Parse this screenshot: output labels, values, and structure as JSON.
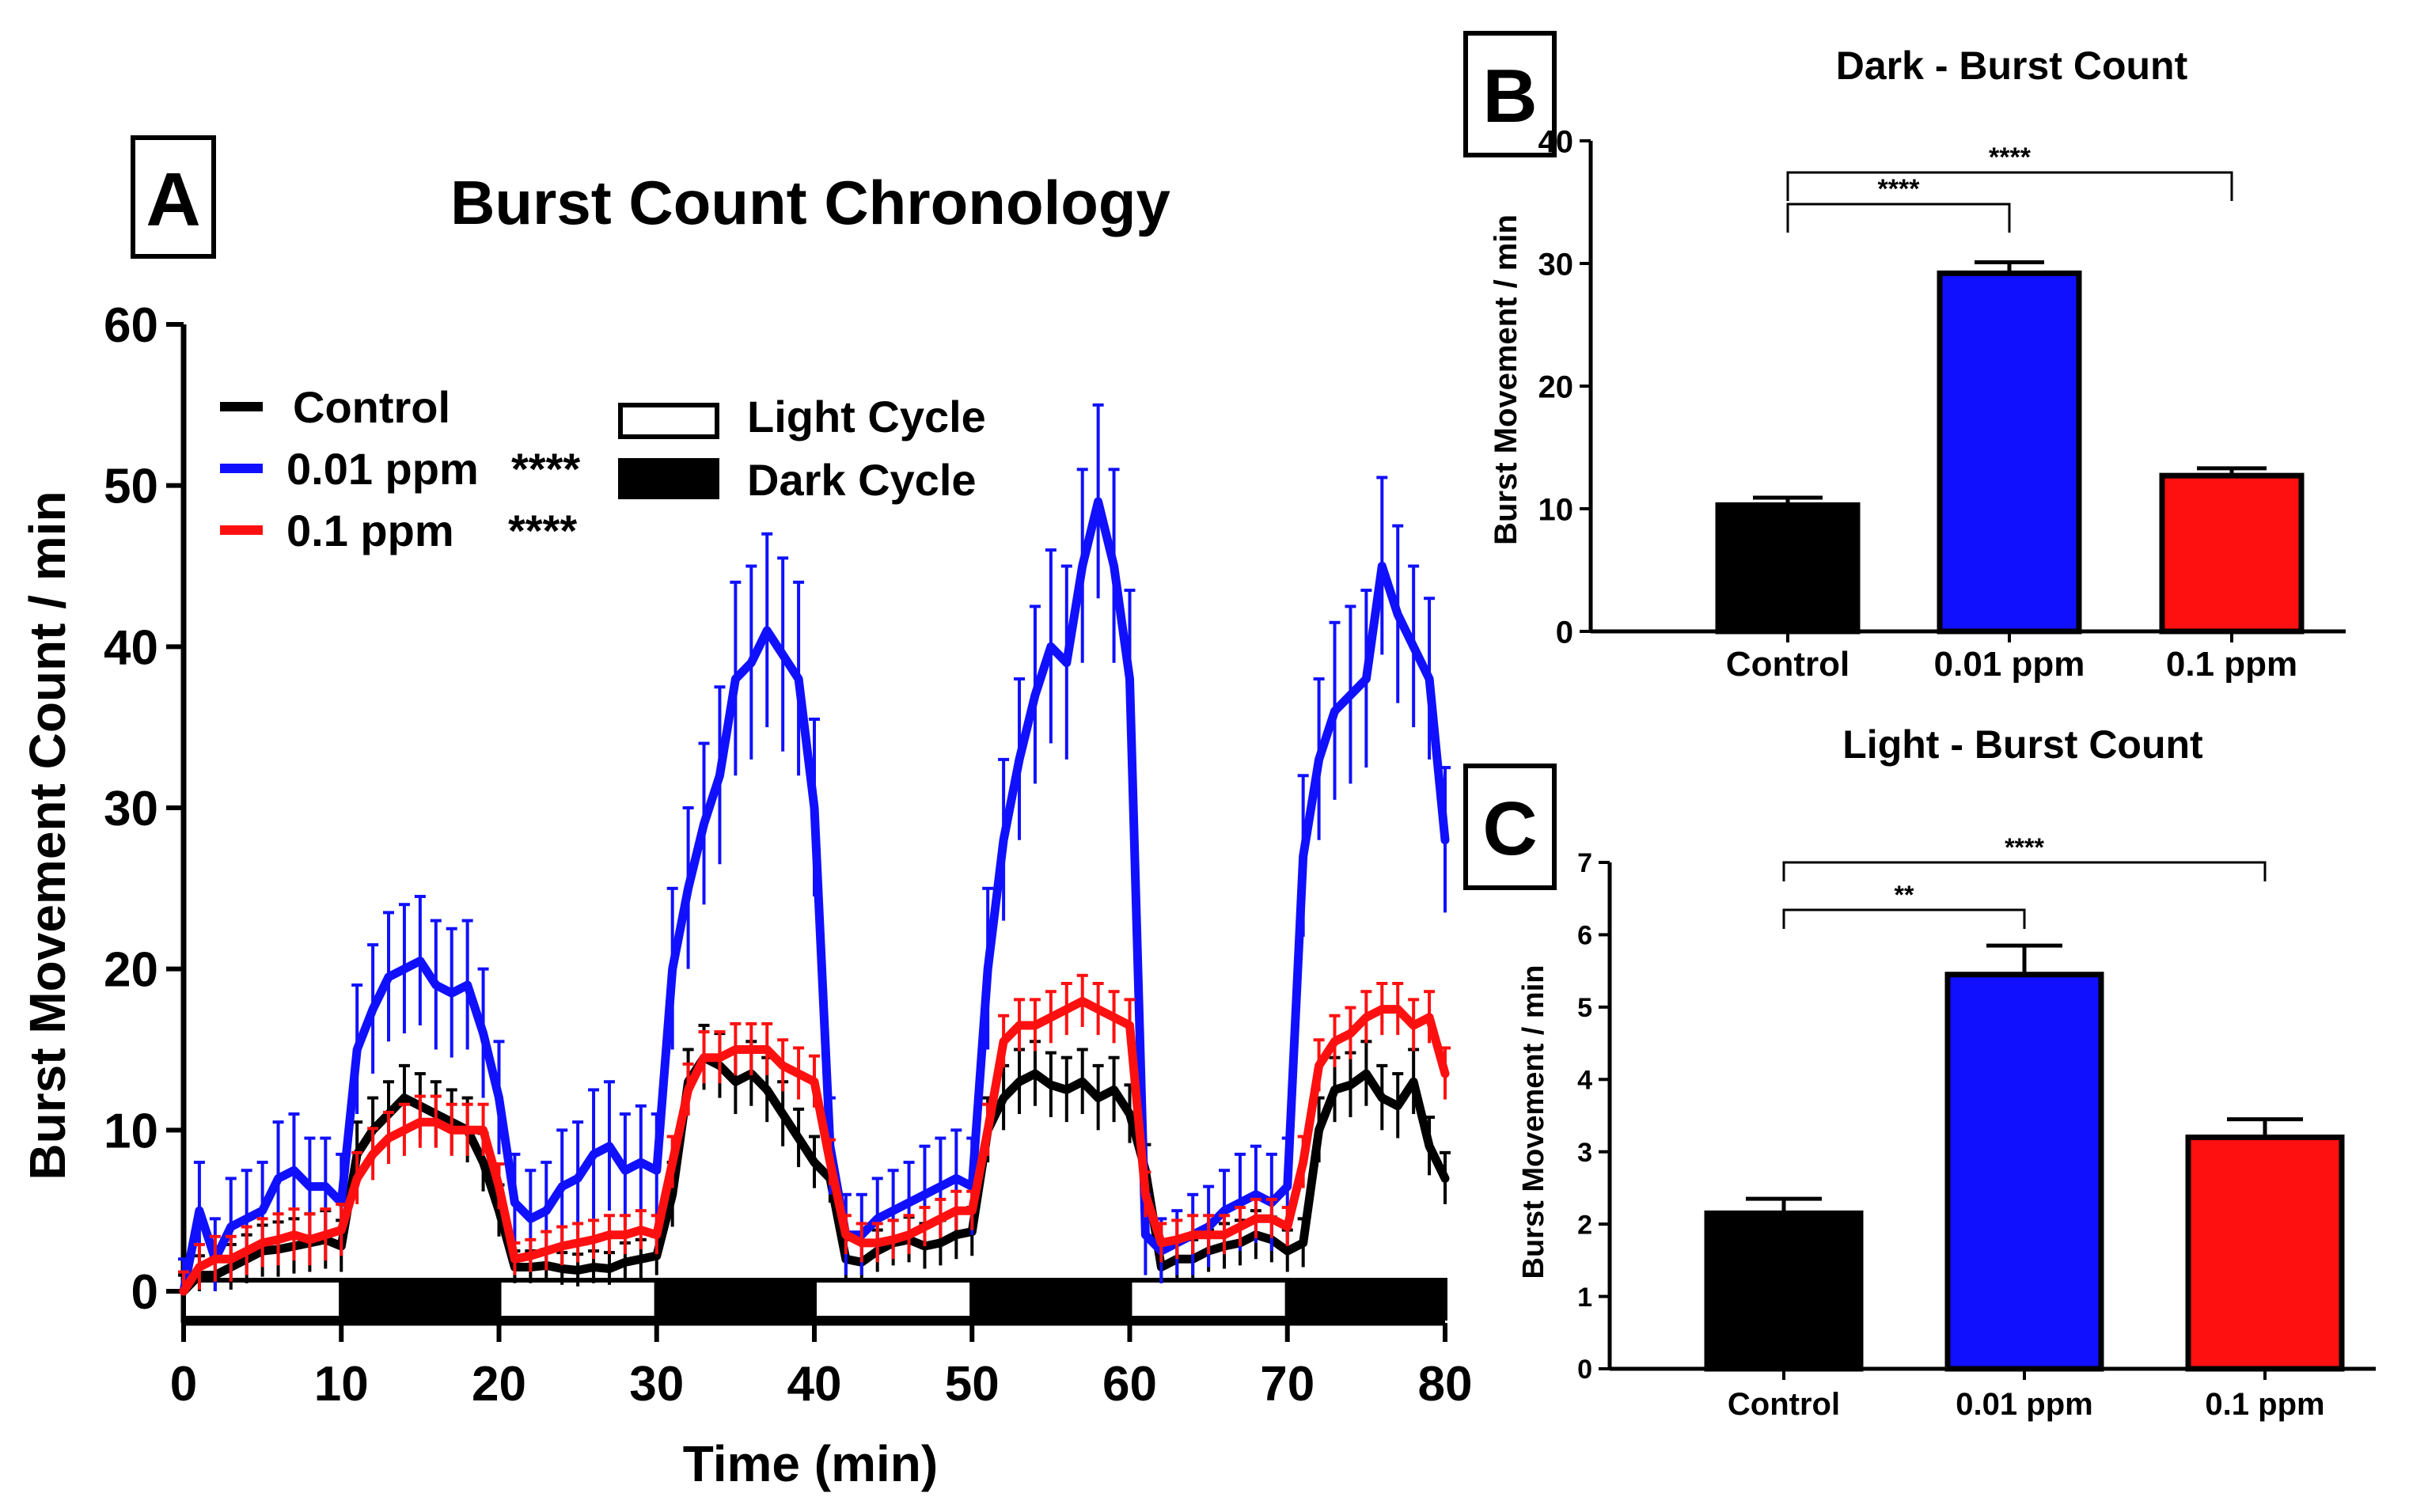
{
  "chart_data": [
    {
      "panel": "A",
      "type": "line",
      "title": "Burst Count Chronology",
      "xlabel": "Time (min)",
      "ylabel": "Burst Movement Count / min",
      "xlim": [
        0,
        80
      ],
      "ylim": [
        0,
        60
      ],
      "xticks": [
        0,
        10,
        20,
        30,
        40,
        50,
        60,
        70,
        80
      ],
      "yticks": [
        0,
        10,
        20,
        30,
        40,
        50,
        60
      ],
      "x": [
        0,
        1,
        2,
        3,
        4,
        5,
        6,
        7,
        8,
        9,
        10,
        11,
        12,
        13,
        14,
        15,
        16,
        17,
        18,
        19,
        20,
        21,
        22,
        23,
        24,
        25,
        26,
        27,
        28,
        29,
        30,
        31,
        32,
        33,
        34,
        35,
        36,
        37,
        38,
        39,
        40,
        41,
        42,
        43,
        44,
        45,
        46,
        47,
        48,
        49,
        50,
        51,
        52,
        53,
        54,
        55,
        56,
        57,
        58,
        59,
        60,
        61,
        62,
        63,
        64,
        65,
        66,
        67,
        68,
        69,
        70,
        71,
        72,
        73,
        74,
        75,
        76,
        77,
        78,
        79,
        80
      ],
      "series": [
        {
          "name": "Control",
          "sig": "",
          "color": "#000000",
          "values": [
            0,
            1.0,
            1.0,
            1.5,
            2.0,
            2.5,
            2.6,
            2.8,
            3.0,
            3.2,
            2.8,
            8.5,
            10.0,
            11.0,
            12.0,
            11.5,
            11.0,
            10.5,
            10.0,
            8.0,
            5.0,
            1.5,
            1.5,
            1.6,
            1.4,
            1.3,
            1.5,
            1.4,
            1.8,
            2.0,
            2.2,
            6.0,
            13.0,
            14.5,
            14.0,
            13.0,
            13.5,
            12.5,
            11.0,
            9.5,
            8.0,
            7.0,
            2.0,
            1.8,
            2.5,
            3.0,
            3.2,
            2.8,
            3.0,
            3.5,
            3.7,
            10.0,
            12.0,
            13.0,
            13.5,
            12.8,
            12.5,
            13.0,
            12.0,
            12.5,
            11.0,
            7.5,
            1.5,
            2.0,
            2.0,
            2.5,
            2.8,
            3.0,
            3.5,
            3.2,
            2.5,
            3.0,
            10.0,
            12.5,
            12.8,
            13.5,
            12.0,
            11.5,
            13.0,
            9.0,
            7.0
          ],
          "errors": [
            1,
            1.2,
            1.2,
            1.4,
            1.5,
            1.6,
            1.7,
            1.7,
            1.8,
            1.8,
            1.6,
            2.0,
            2.0,
            2.0,
            2.0,
            2.0,
            2.0,
            2.0,
            2.0,
            1.8,
            1.6,
            1.0,
            1.0,
            1.0,
            1.0,
            1.0,
            1.0,
            1.0,
            1.2,
            1.2,
            1.2,
            2.0,
            2.0,
            2.0,
            2.0,
            2.0,
            2.0,
            2.0,
            2.0,
            1.8,
            1.6,
            1.5,
            1.2,
            1.2,
            1.3,
            1.4,
            1.4,
            1.4,
            1.4,
            1.5,
            1.5,
            2.0,
            2.0,
            2.0,
            2.0,
            2.0,
            2.0,
            2.0,
            2.0,
            2.0,
            1.8,
            1.6,
            1.0,
            1.2,
            1.2,
            1.3,
            1.4,
            1.4,
            1.5,
            1.4,
            1.3,
            1.5,
            2.0,
            2.0,
            2.0,
            2.0,
            2.0,
            2.0,
            2.0,
            1.8,
            1.6
          ]
        },
        {
          "name": "0.01 ppm",
          "sig": "****",
          "color": "#1010ff",
          "values": [
            0,
            5.0,
            2.0,
            4.0,
            4.5,
            5.0,
            7.0,
            7.5,
            6.5,
            6.5,
            5.5,
            15.0,
            17.5,
            19.5,
            20.0,
            20.5,
            19.0,
            18.5,
            19.0,
            16.0,
            12.0,
            5.5,
            4.5,
            5.0,
            6.5,
            7.0,
            8.5,
            9.0,
            7.5,
            8.0,
            7.5,
            20.0,
            25.0,
            29.0,
            32.0,
            38.0,
            39.0,
            41.0,
            39.5,
            38.0,
            30.0,
            9.0,
            3.5,
            3.5,
            4.5,
            5.0,
            5.5,
            6.0,
            6.5,
            7.0,
            6.5,
            20.0,
            28.0,
            33.0,
            37.0,
            40.0,
            39.0,
            45.0,
            49.0,
            45.0,
            38.0,
            3.5,
            2.5,
            3.0,
            3.5,
            4.0,
            5.0,
            5.5,
            6.0,
            5.5,
            6.5,
            27.0,
            33.0,
            36.0,
            37.0,
            38.0,
            45.0,
            42.0,
            40.0,
            38.0,
            28.0
          ],
          "errors": [
            2,
            3.0,
            2.5,
            3.0,
            3.0,
            3.0,
            3.5,
            3.5,
            3.0,
            3.0,
            3.0,
            4.0,
            4.0,
            4.0,
            4.0,
            4.0,
            4.0,
            4.0,
            4.0,
            4.0,
            3.5,
            3.0,
            3.0,
            3.0,
            3.5,
            3.5,
            4.0,
            4.0,
            3.5,
            3.5,
            3.5,
            5.0,
            5.0,
            5.0,
            5.5,
            6.0,
            6.0,
            6.0,
            6.0,
            6.0,
            5.5,
            3.0,
            2.5,
            2.5,
            2.5,
            2.5,
            2.5,
            3.0,
            3.0,
            3.0,
            3.0,
            5.0,
            5.0,
            5.0,
            5.5,
            6.0,
            6.0,
            6.0,
            6.0,
            6.0,
            5.5,
            2.5,
            2.0,
            2.0,
            2.5,
            2.5,
            2.5,
            3.0,
            3.0,
            3.0,
            3.0,
            5.0,
            5.0,
            5.5,
            5.5,
            5.5,
            5.5,
            5.5,
            5.0,
            5.0,
            4.5
          ]
        },
        {
          "name": "0.1 ppm",
          "sig": "****",
          "color": "#ff1010",
          "values": [
            0,
            1.5,
            2.0,
            2.0,
            2.5,
            3.0,
            3.2,
            3.5,
            3.2,
            3.5,
            3.8,
            7.0,
            8.5,
            9.5,
            10.0,
            10.5,
            10.5,
            10.0,
            10.0,
            10.0,
            6.5,
            2.0,
            2.2,
            2.5,
            2.8,
            3.0,
            3.2,
            3.5,
            3.5,
            3.8,
            3.5,
            8.0,
            12.5,
            14.5,
            14.5,
            15.0,
            15.0,
            15.0,
            14.0,
            13.5,
            13.0,
            8.0,
            3.5,
            3.0,
            3.0,
            3.2,
            3.5,
            4.0,
            4.5,
            5.0,
            5.0,
            10.0,
            15.5,
            16.5,
            16.5,
            17.0,
            17.5,
            18.0,
            17.5,
            17.0,
            16.5,
            6.0,
            3.0,
            3.2,
            3.5,
            3.5,
            3.5,
            4.0,
            4.5,
            4.5,
            4.0,
            8.0,
            14.0,
            15.5,
            16.0,
            17.0,
            17.5,
            17.5,
            16.5,
            17.0,
            13.5
          ],
          "errors": [
            1.2,
            1.4,
            1.4,
            1.4,
            1.5,
            1.5,
            1.6,
            1.6,
            1.6,
            1.6,
            1.6,
            1.6,
            1.6,
            1.6,
            1.6,
            1.6,
            1.6,
            1.6,
            1.6,
            1.6,
            1.4,
            1.0,
            1.0,
            1.2,
            1.2,
            1.2,
            1.2,
            1.2,
            1.2,
            1.2,
            1.2,
            1.6,
            1.6,
            1.6,
            1.6,
            1.6,
            1.6,
            1.6,
            1.6,
            1.6,
            1.6,
            1.4,
            1.2,
            1.2,
            1.2,
            1.2,
            1.2,
            1.2,
            1.2,
            1.2,
            1.2,
            1.6,
            1.6,
            1.6,
            1.6,
            1.6,
            1.6,
            1.6,
            1.6,
            1.6,
            1.6,
            1.4,
            1.2,
            1.2,
            1.2,
            1.2,
            1.2,
            1.2,
            1.2,
            1.2,
            1.2,
            1.6,
            1.6,
            1.6,
            1.6,
            1.6,
            1.6,
            1.6,
            1.6,
            1.6,
            1.6
          ]
        }
      ],
      "cycle_bars": [
        {
          "start": 0,
          "end": 10,
          "cycle": "light"
        },
        {
          "start": 10,
          "end": 20,
          "cycle": "dark"
        },
        {
          "start": 20,
          "end": 30,
          "cycle": "light"
        },
        {
          "start": 30,
          "end": 40,
          "cycle": "dark"
        },
        {
          "start": 40,
          "end": 50,
          "cycle": "light"
        },
        {
          "start": 50,
          "end": 60,
          "cycle": "dark"
        },
        {
          "start": 60,
          "end": 70,
          "cycle": "light"
        },
        {
          "start": 70,
          "end": 80,
          "cycle": "dark"
        }
      ],
      "cycle_legend": {
        "light": "Light Cycle",
        "dark": "Dark Cycle"
      },
      "legend_position": "top-left"
    },
    {
      "panel": "B",
      "type": "bar",
      "title": "Dark - Burst Count",
      "xlabel": "",
      "ylabel": "Burst Movement / min",
      "ylim": [
        0,
        40
      ],
      "yticks": [
        0,
        10,
        20,
        30,
        40
      ],
      "categories": [
        "Control",
        "0.01 ppm",
        "0.1 ppm"
      ],
      "values": [
        10.3,
        29.2,
        12.7
      ],
      "errors": [
        0.6,
        0.9,
        0.6
      ],
      "colors": [
        "#000000",
        "#1010ff",
        "#ff1010"
      ],
      "significance": [
        {
          "from": 0,
          "to": 1,
          "label": "****"
        },
        {
          "from": 0,
          "to": 2,
          "label": "****"
        }
      ]
    },
    {
      "panel": "C",
      "type": "bar",
      "title": "Light - Burst Count",
      "xlabel": "",
      "ylabel": "Burst Movement / min",
      "ylim": [
        0,
        7
      ],
      "yticks": [
        0,
        1,
        2,
        3,
        4,
        5,
        6,
        7
      ],
      "categories": [
        "Control",
        "0.01 ppm",
        "0.1 ppm"
      ],
      "values": [
        2.15,
        5.45,
        3.2
      ],
      "errors": [
        0.2,
        0.4,
        0.25
      ],
      "colors": [
        "#000000",
        "#1010ff",
        "#ff1010"
      ],
      "significance": [
        {
          "from": 0,
          "to": 1,
          "label": "**"
        },
        {
          "from": 0,
          "to": 2,
          "label": "****"
        }
      ]
    }
  ]
}
